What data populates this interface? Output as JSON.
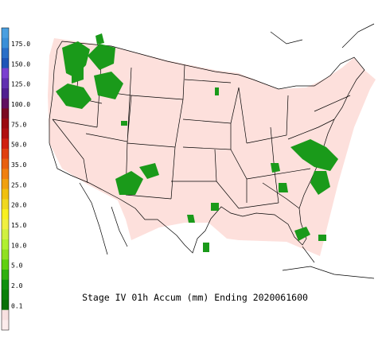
{
  "title": "Stage IV 01h Accum (mm) Ending 2020061600",
  "legend": {
    "labels": [
      "175.0",
      "150.0",
      "125.0",
      "100.0",
      "75.0",
      "50.0",
      "35.0",
      "25.0",
      "20.0",
      "15.0",
      "10.0",
      "5.0",
      "2.0",
      "0.1"
    ],
    "colors": [
      "#4a9fe0",
      "#3a8fd8",
      "#2a6fc8",
      "#1f55b8",
      "#7a40d0",
      "#6030b0",
      "#502090",
      "#601060",
      "#7a0a20",
      "#9a0a10",
      "#b01010",
      "#d02010",
      "#e04010",
      "#e86010",
      "#f08010",
      "#f0a010",
      "#f0c010",
      "#f0d820",
      "#f8f020",
      "#f0f040",
      "#d0f040",
      "#b0f030",
      "#90e020",
      "#60d010",
      "#30b010",
      "#109010",
      "#0a800a",
      "#087008",
      "#f8e0e0",
      "#fcecec"
    ]
  }
}
